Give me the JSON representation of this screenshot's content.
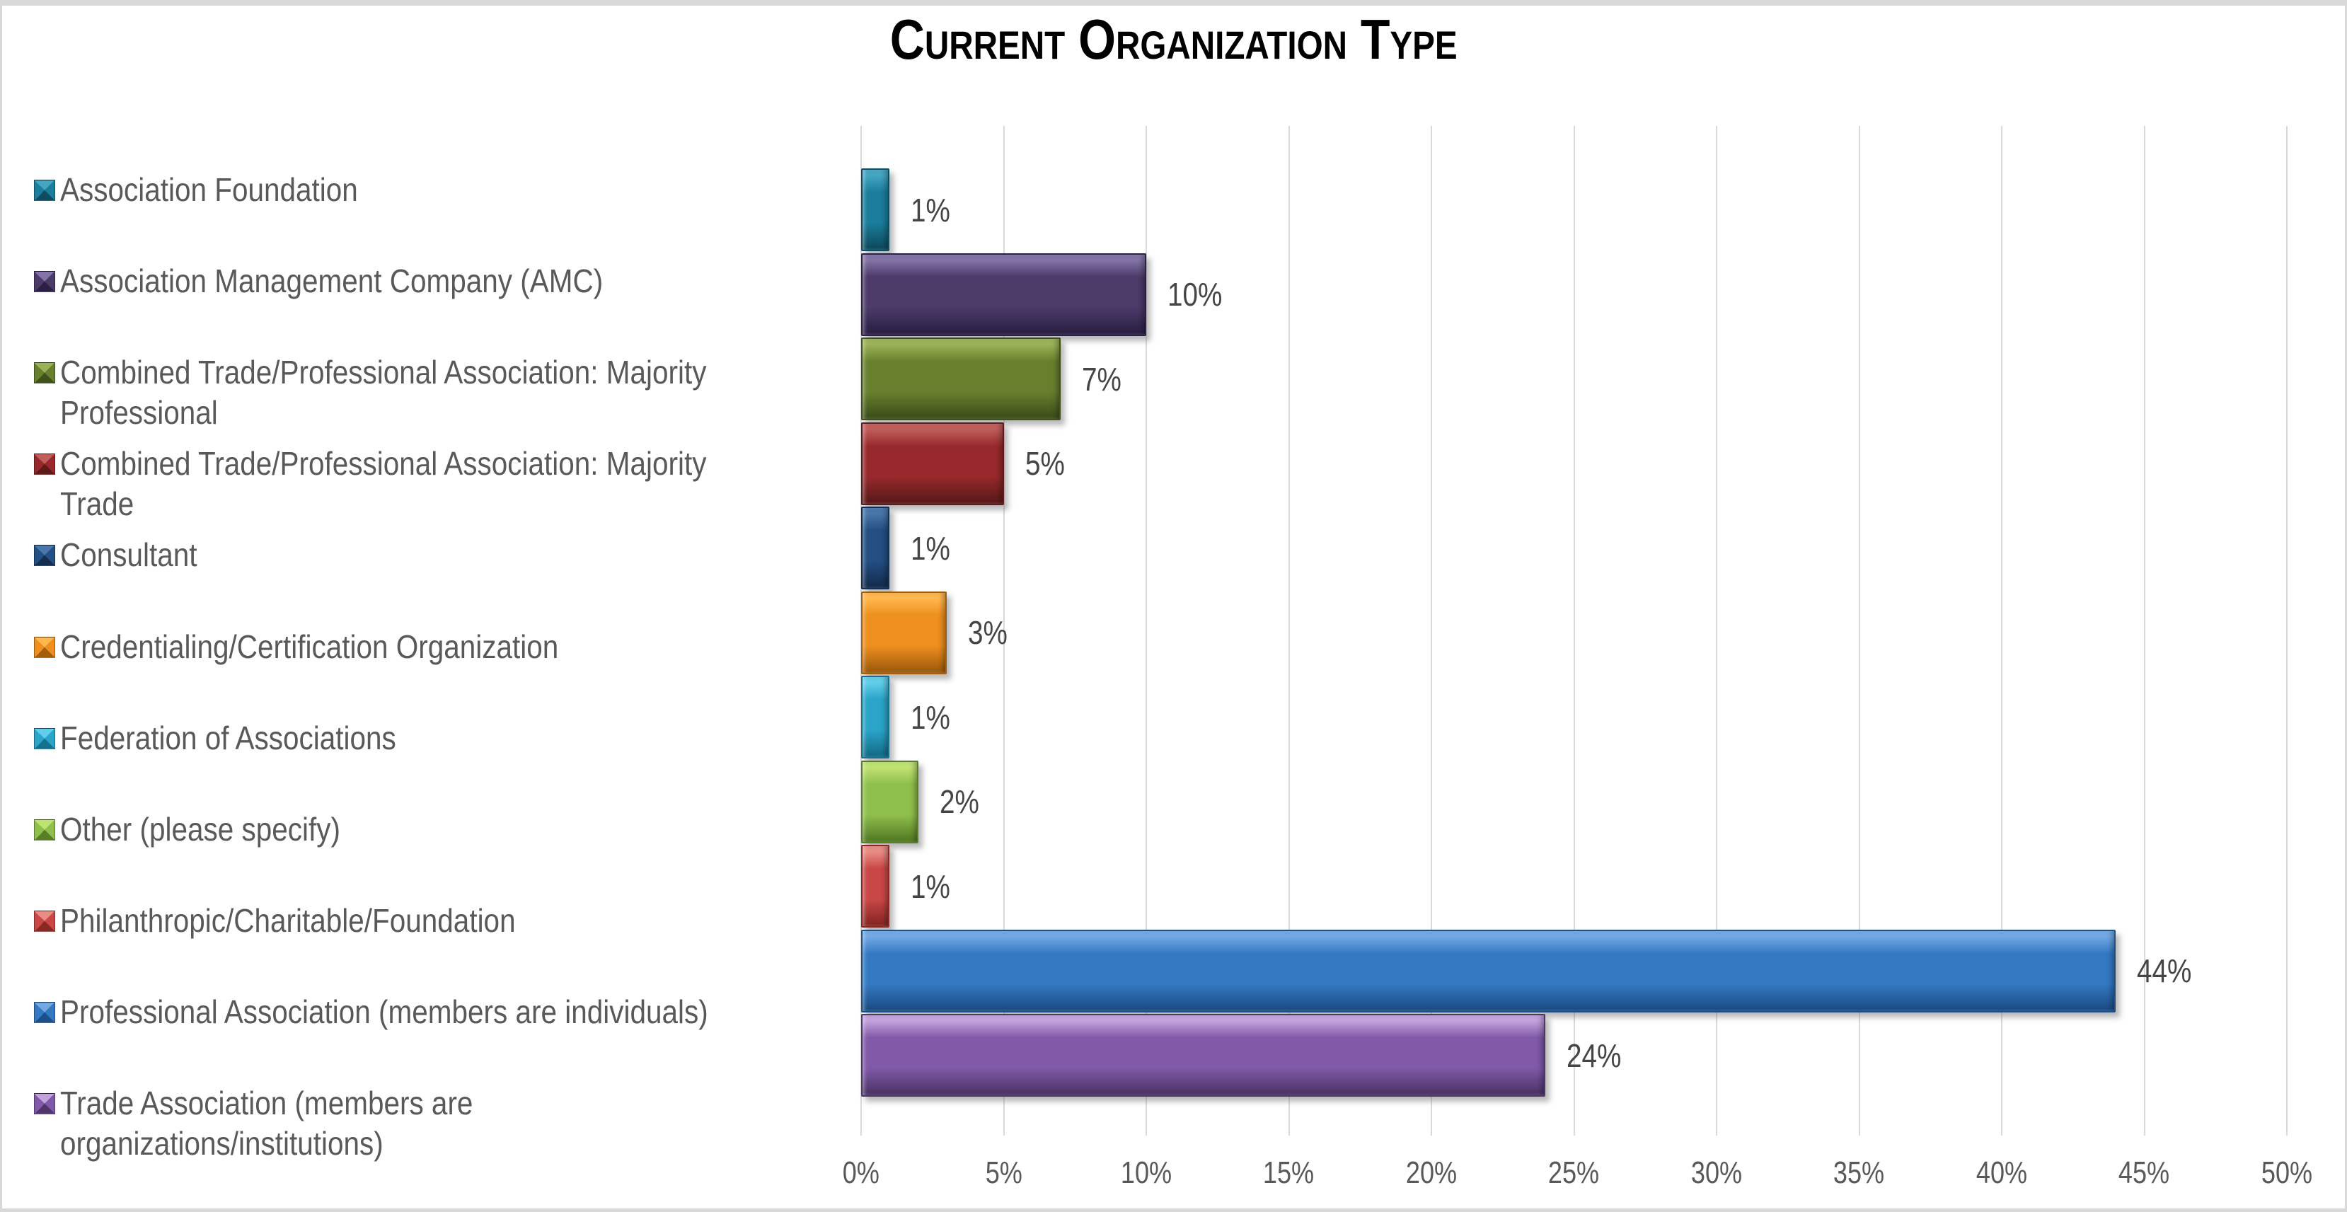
{
  "title": "Current Organization Type",
  "chart_data": {
    "type": "bar",
    "orientation": "horizontal",
    "title": "Current Organization Type",
    "categories": [
      "Association Foundation",
      "Association Management Company (AMC)",
      "Combined Trade/Professional Association: Majority\nProfessional",
      "Combined Trade/Professional Association: Majority\nTrade",
      "Consultant",
      "Credentialing/Certification Organization",
      "Federation of Associations",
      "Other (please specify)",
      "Philanthropic/Charitable/Foundation",
      "Professional Association (members are individuals)",
      "Trade Association (members are\norganizations/institutions)"
    ],
    "values": [
      1,
      10,
      7,
      5,
      1,
      3,
      1,
      2,
      1,
      44,
      24
    ],
    "labels": [
      "1%",
      "10%",
      "7%",
      "5%",
      "1%",
      "3%",
      "1%",
      "2%",
      "1%",
      "44%",
      "24%"
    ],
    "colors": [
      {
        "light": "#45A6C2",
        "base": "#1B7E9C",
        "dark": "#0E4D61"
      },
      {
        "light": "#8274A6",
        "base": "#4C3A69",
        "dark": "#2C2145"
      },
      {
        "light": "#9CB258",
        "base": "#68802E",
        "dark": "#3F511A"
      },
      {
        "light": "#C05E5A",
        "base": "#97292C",
        "dark": "#5E1A1B"
      },
      {
        "light": "#4A77AB",
        "base": "#234F82",
        "dark": "#142E51"
      },
      {
        "light": "#FFB84D",
        "base": "#EE8F1F",
        "dark": "#A35E0C"
      },
      {
        "light": "#62CEEA",
        "base": "#2AA4C8",
        "dark": "#15708C"
      },
      {
        "light": "#BFE271",
        "base": "#8FBF4D",
        "dark": "#577F26"
      },
      {
        "light": "#EA8C86",
        "base": "#C94846",
        "dark": "#8A2826"
      },
      {
        "light": "#72A9E4",
        "base": "#3379C2",
        "dark": "#1D4F88"
      },
      {
        "light": "#C2A3DC",
        "base": "#8059A8",
        "dark": "#4E366B"
      }
    ],
    "xlabel": "",
    "ylabel": "",
    "xlim": [
      0,
      50
    ],
    "x_ticks": [
      "0%",
      "5%",
      "10%",
      "15%",
      "20%",
      "25%",
      "30%",
      "35%",
      "40%",
      "45%",
      "50%"
    ],
    "grid": "vertical",
    "gridline_color": "#D9D9D9",
    "legend_position": "left",
    "axis_text_color": "#595959",
    "data_label_color": "#454545",
    "title_color": "#000000",
    "background_color": "#FFFFFF"
  }
}
